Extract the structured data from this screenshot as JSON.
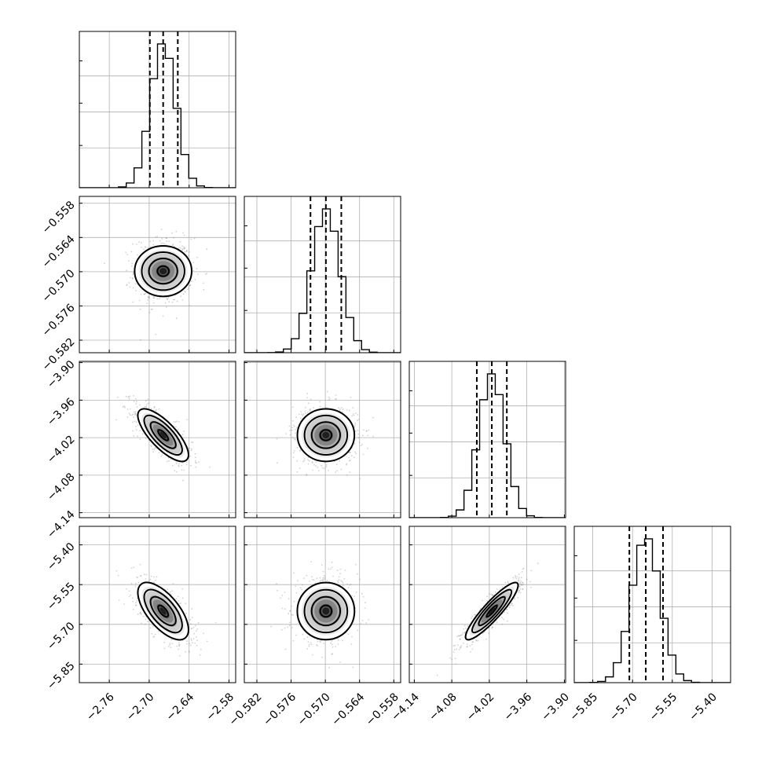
{
  "chart_data": {
    "type": "corner",
    "params": [
      {
        "ticks": [
          "−2.76",
          "−2.70",
          "−2.64",
          "−2.58"
        ],
        "tick_values": [
          -2.76,
          -2.7,
          -2.64,
          -2.58
        ],
        "range": [
          -2.805,
          -2.57
        ],
        "hist_ticks": [
          0,
          1,
          2,
          3
        ],
        "mean": -2.679,
        "sd": 0.019,
        "quantiles": [
          -2.699,
          -2.679,
          -2.657
        ]
      },
      {
        "ticks": [
          "−0.582",
          "−0.576",
          "−0.570",
          "−0.564",
          "−0.558"
        ],
        "tick_values": [
          -0.582,
          -0.576,
          -0.57,
          -0.564,
          -0.558
        ],
        "range": [
          -0.5842,
          -0.5568
        ],
        "hist_ticks": [
          0,
          1,
          2,
          3
        ],
        "mean": -0.5699,
        "sd": 0.0025,
        "quantiles": [
          -0.5726,
          -0.5699,
          -0.5672
        ]
      },
      {
        "ticks": [
          "−4.14",
          "−4.08",
          "−4.02",
          "−3.96",
          "−3.90"
        ],
        "tick_values": [
          -4.14,
          -4.08,
          -4.02,
          -3.96,
          -3.9
        ],
        "range": [
          -4.148,
          -3.898
        ],
        "hist_ticks": [
          0,
          1,
          2,
          3
        ],
        "mean": -4.016,
        "sd": 0.021,
        "quantiles": [
          -4.04,
          -4.016,
          -3.992
        ]
      },
      {
        "ticks": [
          "−5.85",
          "−5.70",
          "−5.55",
          "−5.40"
        ],
        "tick_values": [
          -5.85,
          -5.7,
          -5.55,
          -5.4
        ],
        "range": [
          -5.92,
          -5.33
        ],
        "hist_ticks": [
          0,
          1,
          2,
          3
        ],
        "mean": -5.65,
        "sd": 0.054,
        "quantiles": [
          -5.712,
          -5.65,
          -5.585
        ]
      }
    ],
    "correlations": [
      [
        1,
        0,
        -0.75,
        -0.65
      ],
      [
        0,
        1,
        0,
        0
      ],
      [
        -0.75,
        0,
        1,
        0.9
      ],
      [
        -0.65,
        0,
        0.9,
        1
      ]
    ],
    "grid": true,
    "colors": {
      "line": "#000000",
      "points": "#7f7f7f",
      "density": "#000000",
      "grid": "#b0b0b0"
    }
  }
}
